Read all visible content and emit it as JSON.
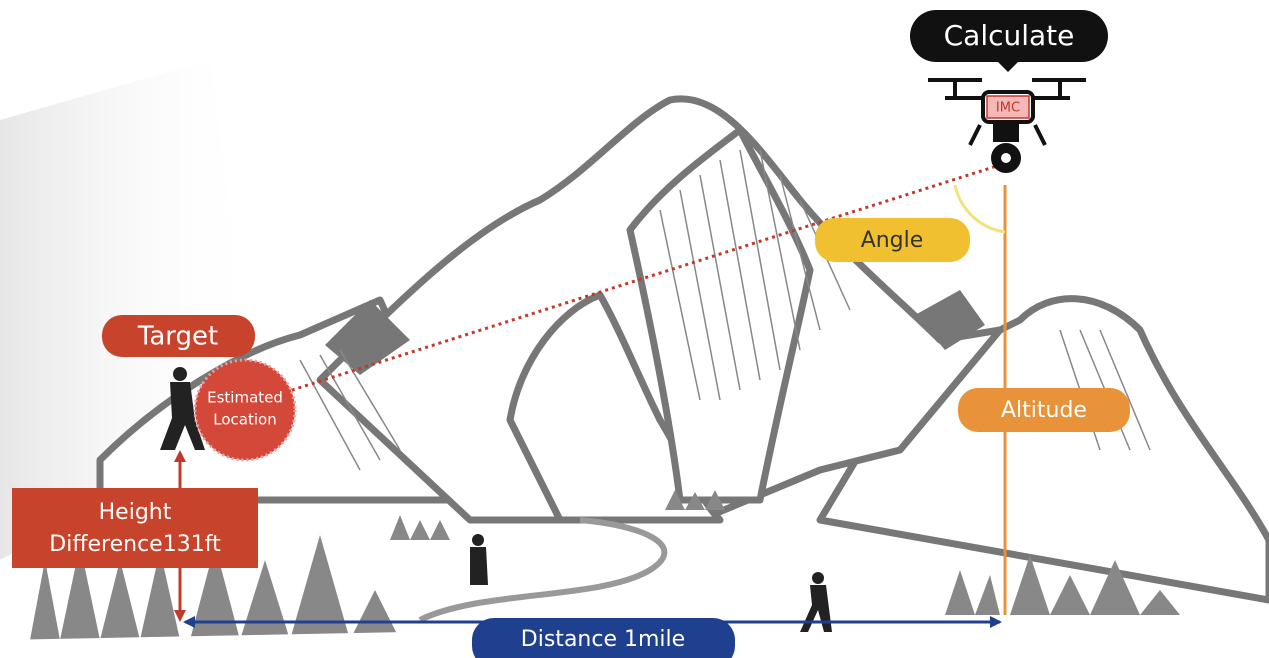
{
  "labels": {
    "calculate": "Calculate",
    "drone_chip": "IMC",
    "angle": "Angle",
    "target": "Target",
    "estimated_location": [
      "Estimated",
      "Location"
    ],
    "altitude": "Altitude",
    "height_difference": [
      "Height",
      "Difference131ft"
    ],
    "distance": "Distance 1mile"
  }
}
